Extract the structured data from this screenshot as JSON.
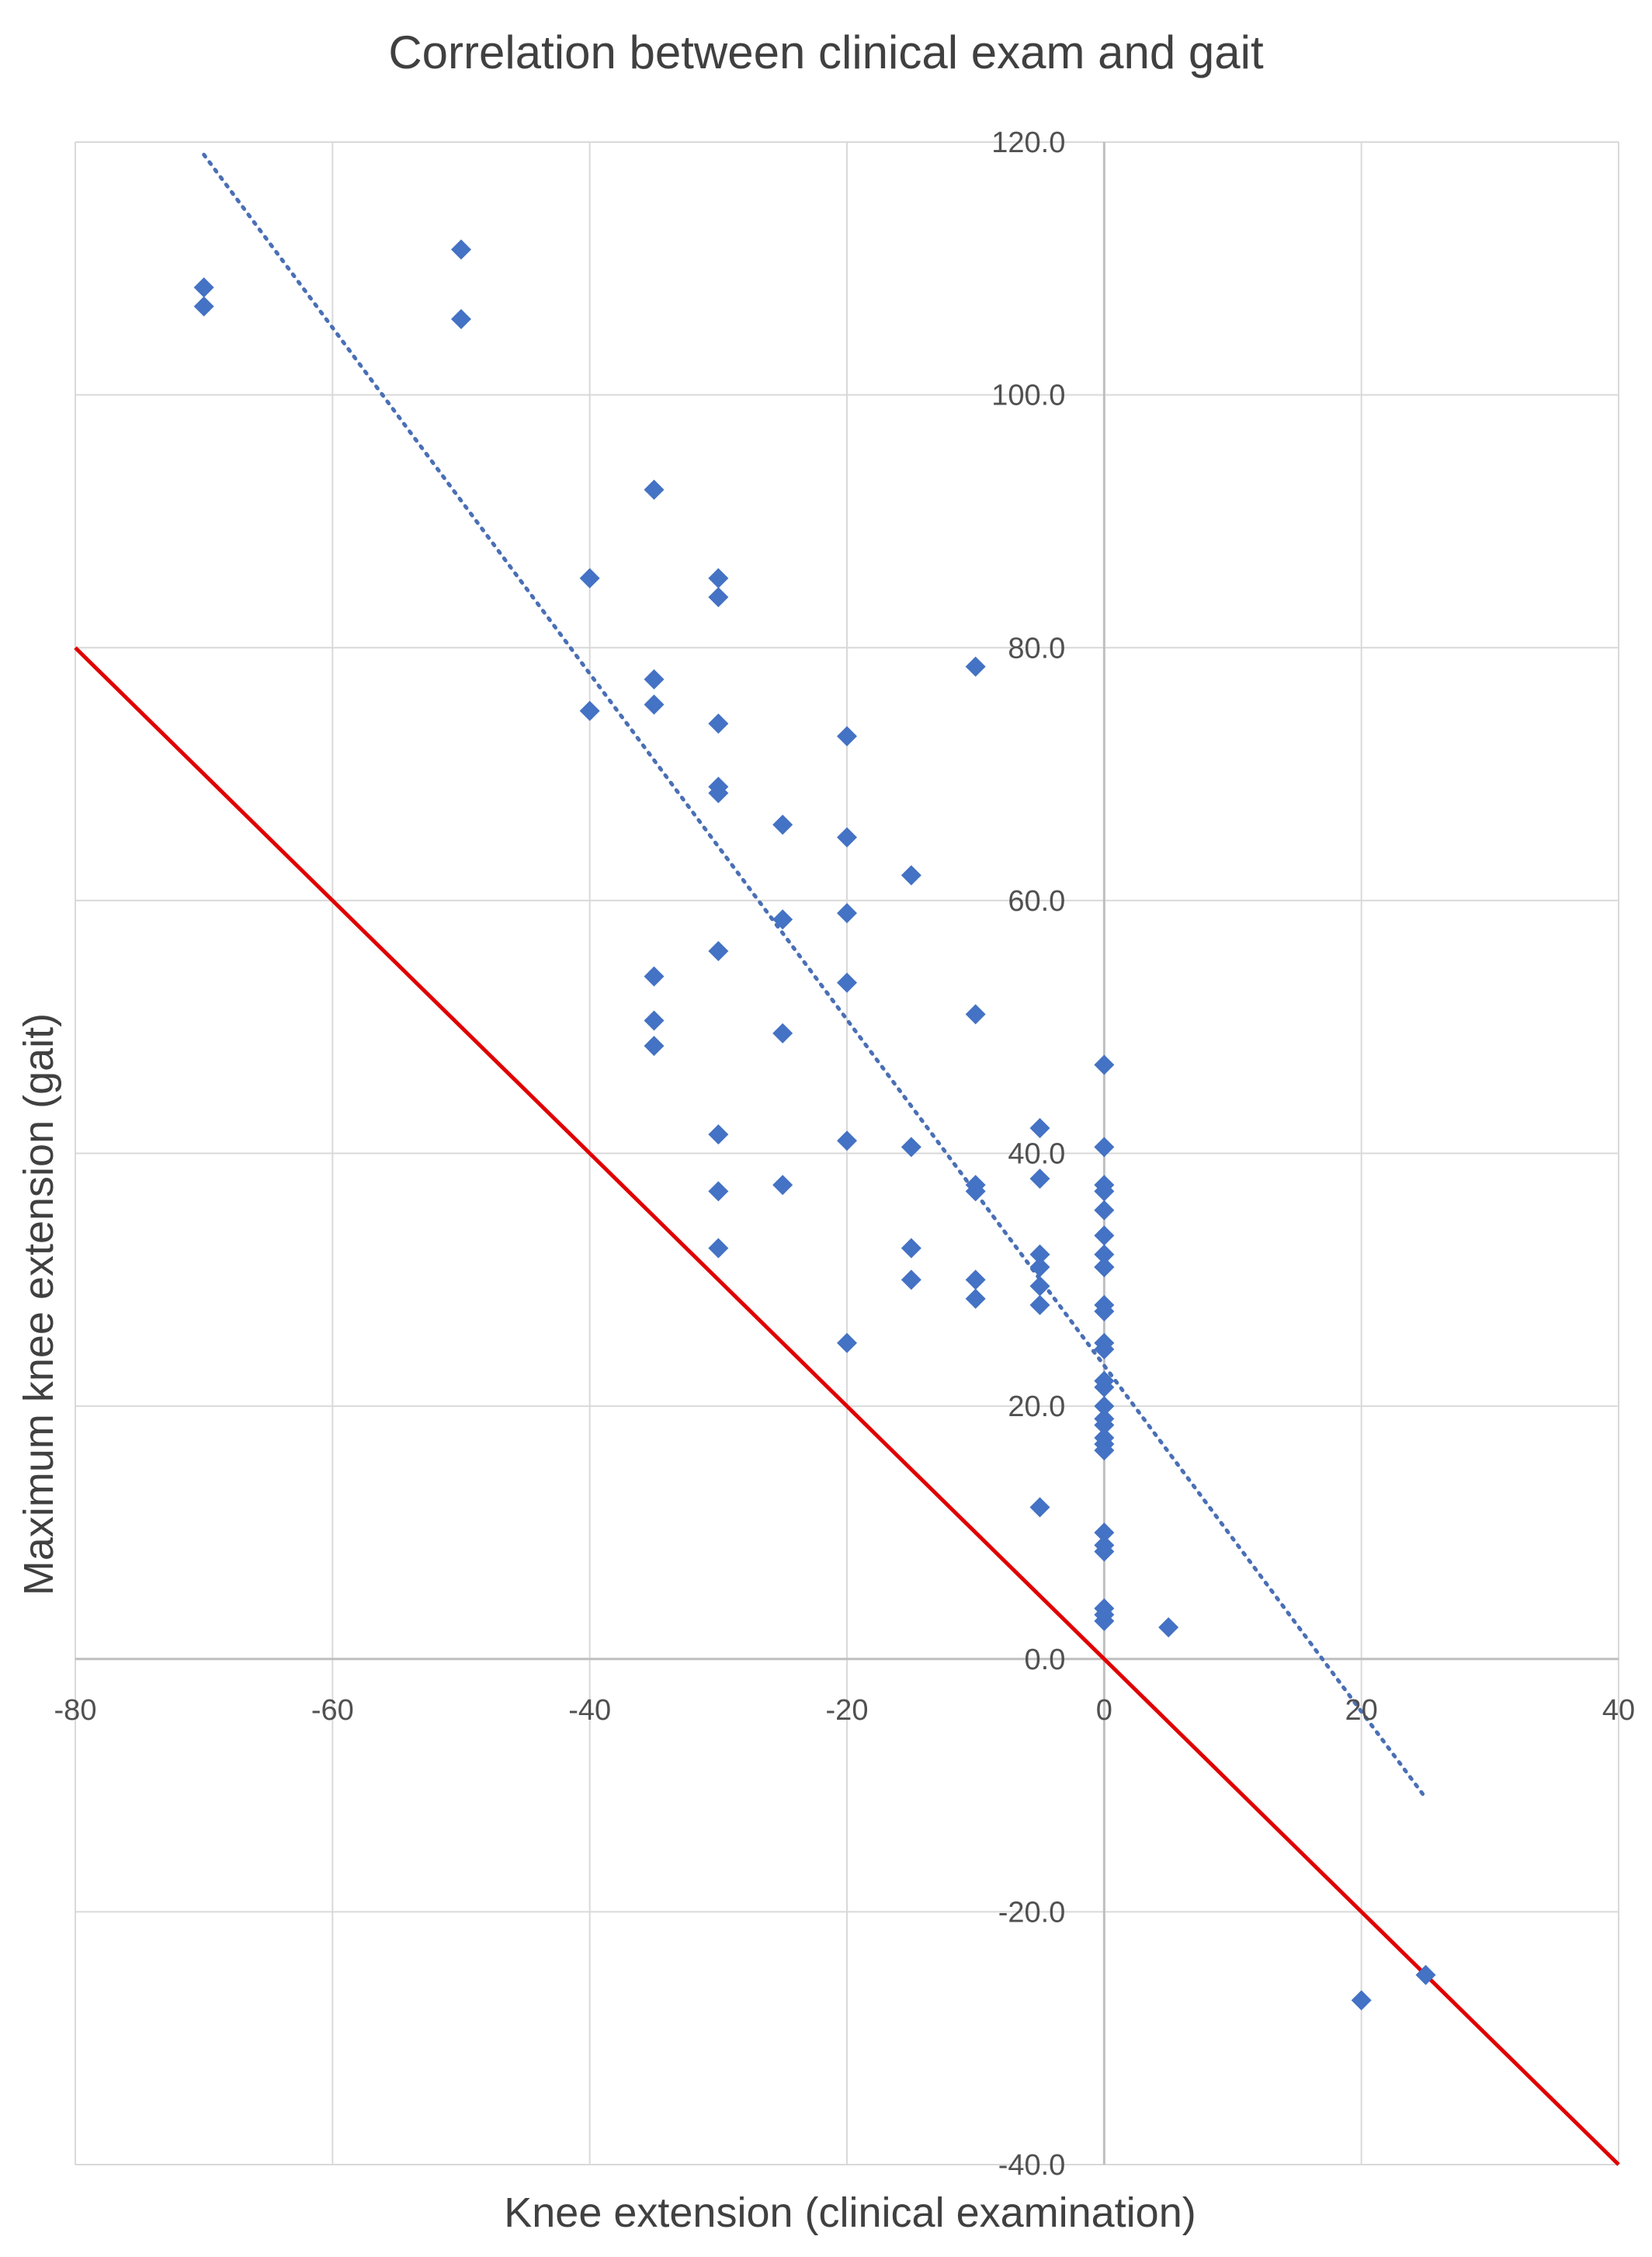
{
  "chart_data": {
    "type": "scatter",
    "title": "Correlation between clinical exam and gait",
    "xlabel": "Knee extension (clinical examination)",
    "ylabel": "Maximum knee extension (gait)",
    "xlim": [
      -80,
      40
    ],
    "ylim": [
      -40,
      120
    ],
    "x_ticks": [
      -80,
      -60,
      -40,
      -20,
      0,
      20,
      40
    ],
    "x_tick_labels": [
      "-80",
      "-60",
      "-40",
      "-20",
      "0",
      "20",
      "40"
    ],
    "y_ticks": [
      -40,
      -20,
      0,
      20,
      40,
      60,
      80,
      100,
      120
    ],
    "y_tick_labels": [
      "-40.0",
      "-20.0",
      "0.0",
      "20.0",
      "40.0",
      "60.0",
      "80.0",
      "100.0",
      "120.0"
    ],
    "grid": true,
    "colors": {
      "points": "#4472c4",
      "trendline": "#4a6fb5",
      "identity_line": "#e00000",
      "grid": "#d9d9d9",
      "axis": "#bfbfbf"
    },
    "series": [
      {
        "marker": "diamond",
        "x": [
          -70,
          -70,
          -50,
          -50,
          -35,
          -40,
          -30,
          -30,
          -10,
          -35,
          -40,
          -35,
          -30,
          -20,
          -30,
          -30,
          -25,
          -20,
          -15,
          -25,
          -20,
          -35,
          -30,
          -20,
          -10,
          -35,
          -25,
          -35,
          0,
          -5,
          0,
          -30,
          -20,
          -15,
          -5,
          0,
          0,
          -30,
          -10,
          -10,
          -25,
          0,
          0,
          -15,
          -30,
          -5,
          0,
          0,
          -5,
          0,
          -15,
          -10,
          -5,
          0,
          -10,
          -5,
          0,
          0,
          -20,
          0,
          0,
          0,
          0,
          0,
          0,
          0,
          0,
          0,
          0,
          -5,
          0,
          0,
          0,
          0,
          5,
          0,
          0,
          20,
          25
        ],
        "y": [
          108.5,
          107,
          111.5,
          106,
          92.5,
          85.5,
          85.5,
          84,
          78.5,
          77.5,
          75,
          75.5,
          74,
          73,
          69,
          68.5,
          66,
          65,
          62,
          58.5,
          59,
          54,
          56,
          53.5,
          51,
          50.5,
          49.5,
          48.5,
          47,
          42,
          40.5,
          41.5,
          41,
          40.5,
          38,
          37.5,
          37,
          37,
          37,
          37.5,
          37.5,
          35.5,
          33.5,
          32.5,
          32.5,
          32,
          32,
          31,
          31,
          31,
          30,
          30,
          29.5,
          31,
          28.5,
          28,
          28,
          27.5,
          25,
          25,
          24.5,
          22,
          21.5,
          20,
          19,
          18.5,
          17.5,
          17,
          16.5,
          12,
          10,
          9,
          8.5,
          4,
          2.5,
          3.5,
          3,
          -27,
          -25
        ]
      }
    ],
    "trendline": {
      "style": "dotted",
      "x": [
        -70,
        25
      ],
      "y": [
        119,
        -11
      ]
    },
    "identity_line": {
      "style": "solid",
      "x": [
        -80,
        40
      ],
      "y": [
        80,
        -40
      ]
    }
  }
}
